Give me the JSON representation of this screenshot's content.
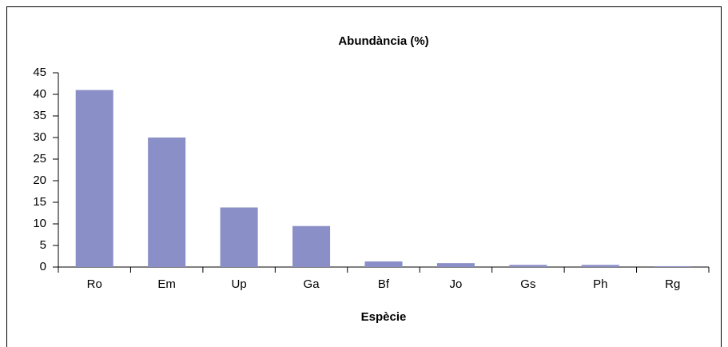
{
  "chart_data": {
    "type": "bar",
    "title": "Abundància (%)",
    "x_label": "Espècie",
    "categories": [
      "Ro",
      "Em",
      "Up",
      "Ga",
      "Bf",
      "Jo",
      "Gs",
      "Ph",
      "Rg"
    ],
    "values": [
      41,
      30,
      13.8,
      9.5,
      1.3,
      0.9,
      0.5,
      0.5,
      0.2
    ],
    "color": "#8b8fc7",
    "ylim": [
      0,
      45
    ],
    "yticks": [
      0,
      5,
      10,
      15,
      20,
      25,
      30,
      35,
      40,
      45
    ],
    "grid": false
  }
}
